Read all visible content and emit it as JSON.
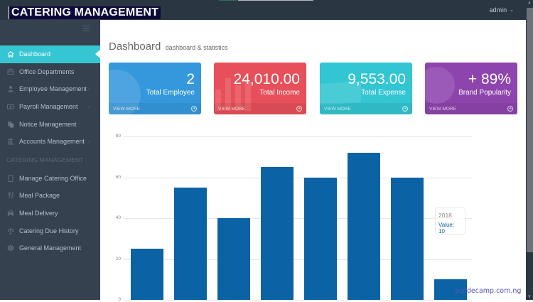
{
  "header": {
    "brand": "CATERING MANAGEMENT",
    "user_label": "admin"
  },
  "sidebar": {
    "items": [
      {
        "label": "Dashboard",
        "icon": "home-icon",
        "active": true,
        "has_arrow": false
      },
      {
        "label": "Office Departments",
        "icon": "briefcase-icon",
        "active": false,
        "has_arrow": false
      },
      {
        "label": "Employee Management",
        "icon": "user-icon",
        "active": false,
        "has_arrow": true
      },
      {
        "label": "Payroll Management",
        "icon": "money-icon",
        "active": false,
        "has_arrow": true
      },
      {
        "label": "Notice Management",
        "icon": "copy-icon",
        "active": false,
        "has_arrow": false
      },
      {
        "label": "Accounts Management",
        "icon": "bank-icon",
        "active": false,
        "has_arrow": true
      }
    ],
    "section_heading": "CATERING MANAGEMENT",
    "section_items": [
      {
        "label": "Manage Catering Office",
        "icon": "tablet-icon"
      },
      {
        "label": "Meal Package",
        "icon": "cutlery-icon"
      },
      {
        "label": "Meal Delivery",
        "icon": "car-icon"
      },
      {
        "label": "Catering Due History",
        "icon": "balance-scale-icon"
      },
      {
        "label": "General Management",
        "icon": "gear-icon"
      }
    ]
  },
  "page": {
    "title": "Dashboard",
    "subtitle": "dashboard & statistics"
  },
  "cards": [
    {
      "value": "2",
      "label": "Total Employee",
      "link": "VIEW MORE",
      "color": "#3598dc"
    },
    {
      "value": "24,010.00",
      "label": "Total Income",
      "link": "VIEW MORE",
      "color": "#e7505a"
    },
    {
      "value": "9,553.00",
      "label": "Total Expense",
      "link": "VIEW MORE",
      "color": "#32c5d2"
    },
    {
      "value": "+ 89%",
      "label": "Brand Popularity",
      "link": "VIEW MORE",
      "color": "#8e44ad"
    }
  ],
  "chart_data": {
    "type": "bar",
    "title": "",
    "xlabel": "",
    "ylabel": "",
    "ylim": [
      0,
      80
    ],
    "yticks": [
      0,
      20,
      40,
      60,
      80
    ],
    "grid": true,
    "categories": [
      "",
      "",
      "",
      "",
      "",
      "",
      "",
      "2018"
    ],
    "values": [
      25,
      55,
      40,
      65,
      60,
      72,
      60,
      10
    ],
    "bar_color": "#0b62a4",
    "tooltip": {
      "category": "2018",
      "text": "Value: 10"
    }
  },
  "watermark": "acodecamp.com.ng"
}
